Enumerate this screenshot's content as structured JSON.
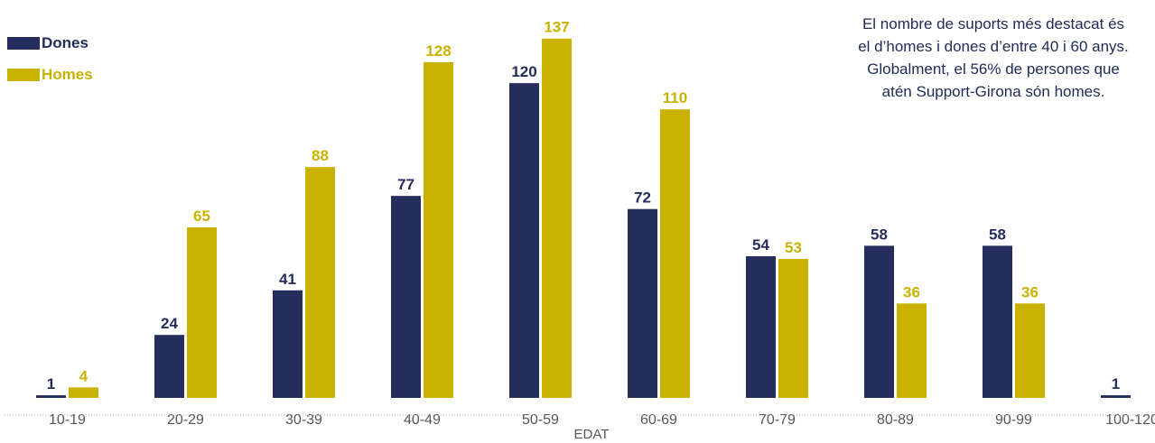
{
  "note": {
    "line1": "El nombre de suports més destacat és",
    "line2": "el d’homes i dones d’entre 40 i 60 anys.",
    "line3": "Globalment, el 56% de persones que",
    "line4": "atén Support-Girona són homes."
  },
  "colors": {
    "dones": "#242d5c",
    "homes": "#c9b200",
    "axis_text": "#555555"
  },
  "chart_data": {
    "type": "bar",
    "xlabel": "EDAT",
    "ylabel": "",
    "ylim": [
      0,
      140
    ],
    "grid": false,
    "legend_position": "top-left",
    "categories": [
      "10-19",
      "20-29",
      "30-39",
      "40-49",
      "50-59",
      "60-69",
      "70-79",
      "80-89",
      "90-99",
      "100-120"
    ],
    "series": [
      {
        "name": "Dones",
        "values": [
          1,
          24,
          41,
          77,
          120,
          72,
          54,
          58,
          58,
          1
        ]
      },
      {
        "name": "Homes",
        "values": [
          4,
          65,
          88,
          128,
          137,
          110,
          53,
          36,
          36,
          null
        ]
      }
    ]
  }
}
